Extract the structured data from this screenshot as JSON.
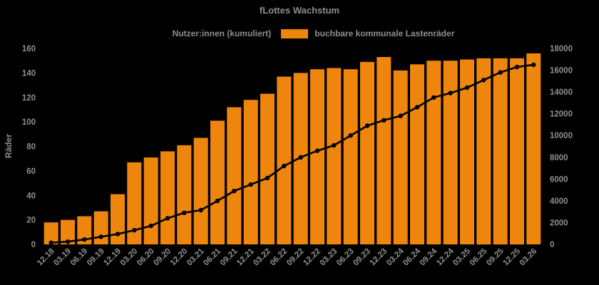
{
  "title": "fLottes Wachstum",
  "legend": {
    "line_label": "Nutzer:innen (kumuliert)",
    "bar_label": "buchbare kommunale Lastenräder"
  },
  "colors": {
    "background": "#000000",
    "bar": "#ee860d",
    "line": "#000000",
    "text": "#8f8f8f"
  },
  "chart_data": {
    "type": "combo-bar-line",
    "title": "fLottes Wachstum",
    "categories": [
      "12.18",
      "03.19",
      "06.19",
      "09.19",
      "12.19",
      "03.20",
      "06.20",
      "09.20",
      "12.20",
      "03.21",
      "06.21",
      "09.21",
      "12.21",
      "03.22",
      "06.22",
      "09.22",
      "12.22",
      "03.23",
      "06.23",
      "09.23",
      "12.23",
      "03.24",
      "06.24",
      "09.24",
      "12.24",
      "03.25",
      "06.25",
      "09.25",
      "12.25",
      "03.26"
    ],
    "series": [
      {
        "name": "buchbare kommunale Lastenräder",
        "type": "bar",
        "axis": "left",
        "color": "#ee860d",
        "values": [
          18,
          20,
          23,
          27,
          41,
          67,
          71,
          76,
          81,
          87,
          101,
          112,
          118,
          123,
          137,
          140,
          143,
          144,
          143,
          149,
          153,
          142,
          147,
          150,
          150,
          151,
          152,
          152,
          152,
          156
        ]
      },
      {
        "name": "Nutzer:innen (kumuliert)",
        "type": "line",
        "axis": "right",
        "color": "#000000",
        "values": [
          150,
          250,
          450,
          700,
          950,
          1300,
          1700,
          2400,
          2900,
          3150,
          4000,
          4900,
          5500,
          6100,
          7200,
          8000,
          8600,
          9100,
          10000,
          10900,
          11400,
          11800,
          12600,
          13500,
          13900,
          14400,
          15100,
          15800,
          16300,
          16500
        ]
      }
    ],
    "left_axis": {
      "label": "Räder",
      "min": 0,
      "max": 160,
      "step": 20,
      "ticks": [
        "0",
        "20",
        "40",
        "60",
        "80",
        "100",
        "120",
        "140",
        "160"
      ]
    },
    "right_axis": {
      "label": "",
      "min": 0,
      "max": 18000,
      "step": 2000,
      "ticks": [
        "0",
        "2000",
        "4000",
        "6000",
        "8000",
        "10000",
        "12000",
        "14000",
        "16000",
        "18000"
      ]
    },
    "xlabel": "",
    "x_tick_rotation": 45,
    "grid": false,
    "legend_position": "top"
  }
}
